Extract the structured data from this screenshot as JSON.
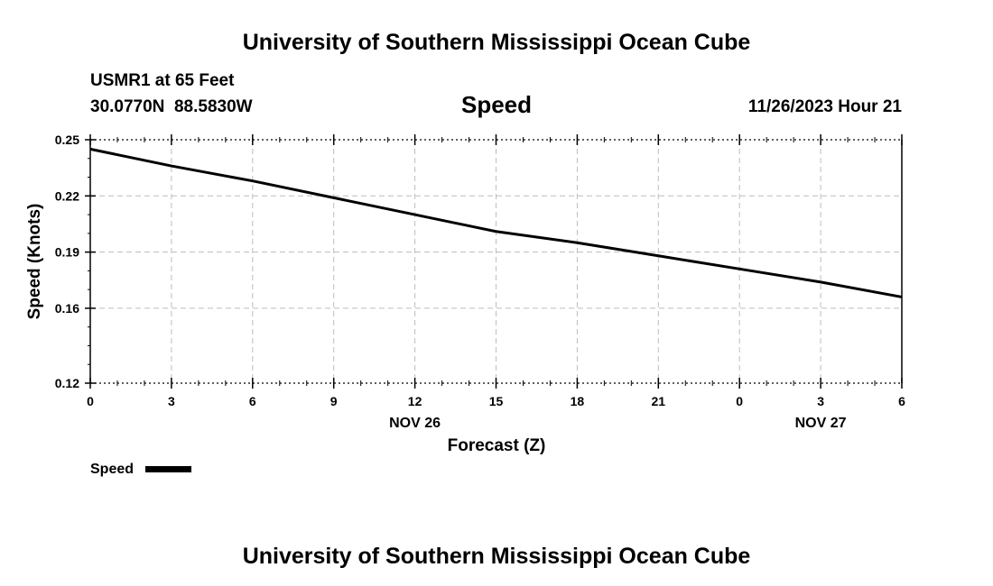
{
  "header": {
    "title": "University of Southern Mississippi Ocean Cube",
    "station": "USMR1 at 65 Feet",
    "coords": "30.0770N  88.5830W",
    "subtitle": "Speed",
    "timestamp": "11/26/2023 Hour 21"
  },
  "footer": {
    "title": "University of Southern Mississippi Ocean Cube"
  },
  "legend": {
    "label": "Speed"
  },
  "chart_data": {
    "type": "line",
    "title": "Speed",
    "xlabel": "Forecast (Z)",
    "ylabel": "Speed (Knots)",
    "x_tick_labels": [
      "0",
      "3",
      "6",
      "9",
      "12",
      "15",
      "18",
      "21",
      "0",
      "3",
      "6"
    ],
    "x_date_labels": [
      {
        "tick_index": 4,
        "label": "NOV 26"
      },
      {
        "tick_index": 9,
        "label": "NOV 27"
      }
    ],
    "y_tick_labels": [
      "0.12",
      "0.16",
      "0.19",
      "0.22",
      "0.25"
    ],
    "ylim": [
      0.12,
      0.25
    ],
    "grid": true,
    "legend_position": "bottom-left",
    "series": [
      {
        "name": "Speed",
        "color": "#000000",
        "x": [
          "11/26 00Z",
          "11/26 03Z",
          "11/26 06Z",
          "11/26 09Z",
          "11/26 12Z",
          "11/26 15Z",
          "11/26 18Z",
          "11/26 21Z",
          "11/27 00Z",
          "11/27 03Z",
          "11/27 06Z"
        ],
        "values": [
          0.245,
          0.236,
          0.228,
          0.219,
          0.21,
          0.201,
          0.195,
          0.188,
          0.181,
          0.174,
          0.166
        ]
      }
    ]
  }
}
